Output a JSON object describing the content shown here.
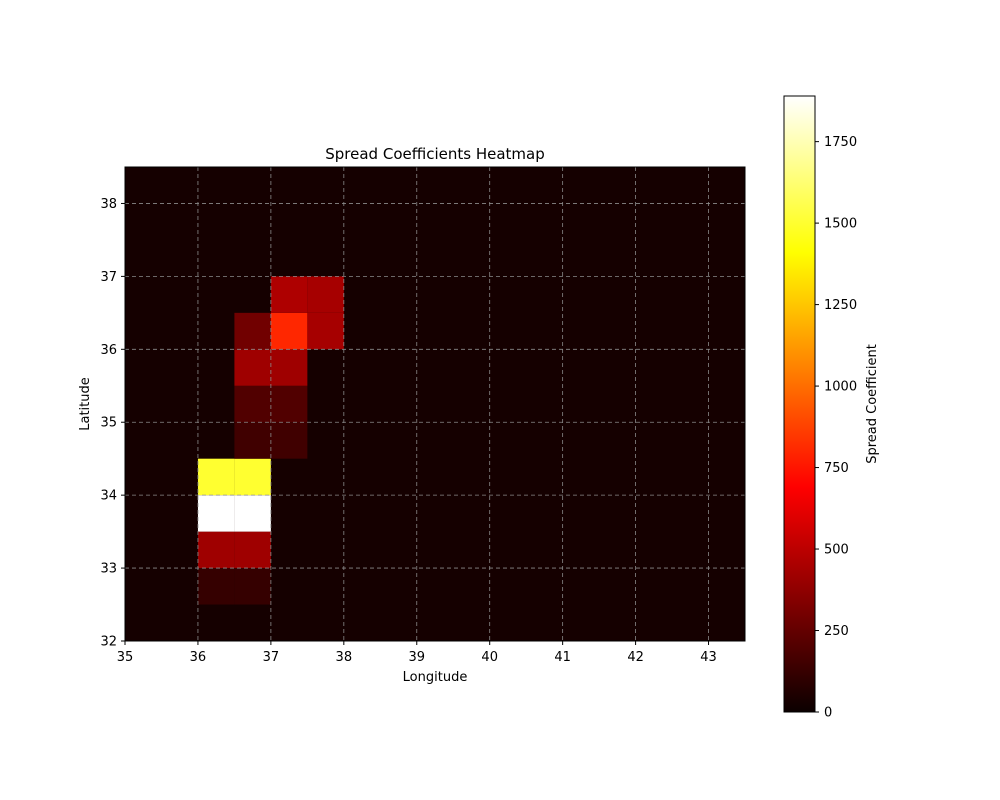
{
  "chart_data": {
    "type": "heatmap",
    "title": "Spread Coefficients Heatmap",
    "xlabel": "Longitude",
    "ylabel": "Latitude",
    "xlim": [
      35,
      43.5
    ],
    "ylim": [
      32,
      38.5
    ],
    "x_ticks": [
      35,
      36,
      37,
      38,
      39,
      40,
      41,
      42,
      43
    ],
    "y_ticks": [
      32,
      33,
      34,
      35,
      36,
      37,
      38
    ],
    "cell_size": 0.5,
    "colormap": "hot",
    "background_value": 30,
    "colorbar": {
      "label": "Spread Coefficient",
      "min": 0,
      "max": 1890,
      "ticks": [
        0,
        250,
        500,
        750,
        1000,
        1250,
        1500,
        1750
      ]
    },
    "grid": true,
    "cells": [
      {
        "lon": 36.0,
        "lat": 32.5,
        "value": 120
      },
      {
        "lon": 36.5,
        "lat": 32.5,
        "value": 120
      },
      {
        "lon": 36.0,
        "lat": 33.0,
        "value": 420
      },
      {
        "lon": 36.5,
        "lat": 33.0,
        "value": 420
      },
      {
        "lon": 36.0,
        "lat": 33.5,
        "value": 1890
      },
      {
        "lon": 36.5,
        "lat": 33.5,
        "value": 1890
      },
      {
        "lon": 36.0,
        "lat": 34.0,
        "value": 1500
      },
      {
        "lon": 36.5,
        "lat": 34.0,
        "value": 1500
      },
      {
        "lon": 36.5,
        "lat": 34.5,
        "value": 150
      },
      {
        "lon": 37.0,
        "lat": 34.5,
        "value": 150
      },
      {
        "lon": 36.5,
        "lat": 35.0,
        "value": 200
      },
      {
        "lon": 37.0,
        "lat": 35.0,
        "value": 200
      },
      {
        "lon": 36.5,
        "lat": 35.5,
        "value": 420
      },
      {
        "lon": 37.0,
        "lat": 35.5,
        "value": 420
      },
      {
        "lon": 36.5,
        "lat": 36.0,
        "value": 290
      },
      {
        "lon": 37.0,
        "lat": 36.0,
        "value": 800
      },
      {
        "lon": 37.5,
        "lat": 36.0,
        "value": 440
      },
      {
        "lon": 37.0,
        "lat": 36.5,
        "value": 460
      },
      {
        "lon": 37.5,
        "lat": 36.5,
        "value": 440
      }
    ]
  }
}
